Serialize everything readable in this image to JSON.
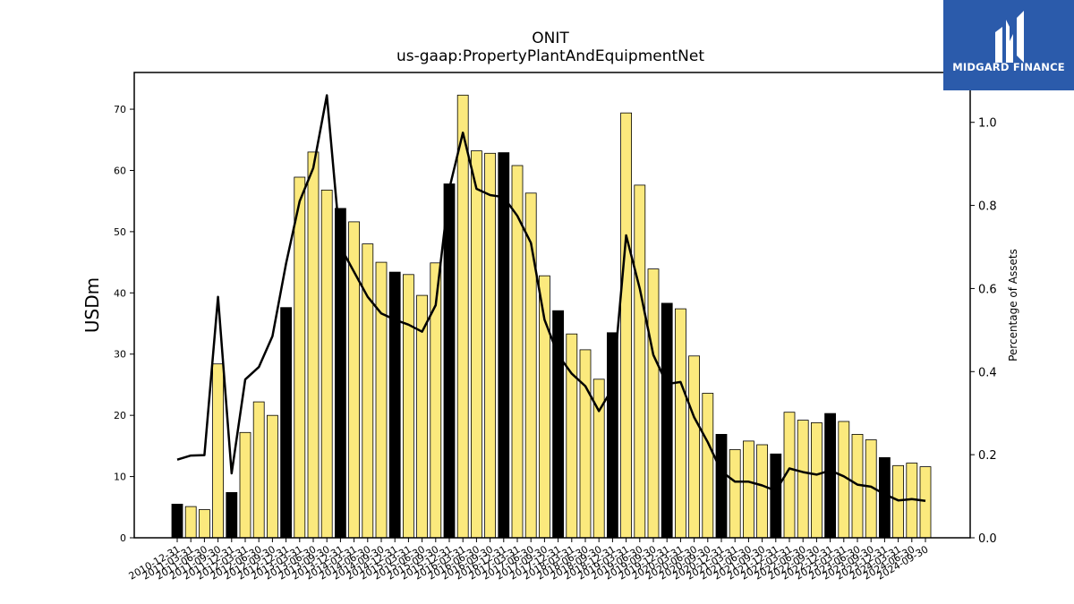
{
  "title": "ONIT",
  "subtitle": "us-gaap:PropertyPlantAndEquipmentNet",
  "logo": {
    "text": "MIDGARD FINANCE",
    "bg_color": "#2b5bab"
  },
  "chart_data": {
    "type": "bar",
    "ylabel_left": "USDm",
    "ylabel_right": "Percentage of Assets",
    "ylim_left": [
      0,
      76
    ],
    "ylim_right": [
      0,
      1.12
    ],
    "yticks_left": [
      0,
      10,
      20,
      30,
      40,
      50,
      60,
      70
    ],
    "yticks_right": [
      "0.0",
      "0.2",
      "0.4",
      "0.6",
      "0.8",
      "1.0"
    ],
    "grid": false,
    "bar_colors": {
      "annual": "#000000",
      "quarter": "#fbe97d"
    },
    "line_color": "#000000",
    "categories": [
      "2010-12-31",
      "2011-03-31",
      "2011-06-30",
      "2011-09-30",
      "2011-12-31",
      "2012-03-31",
      "2012-06-30",
      "2012-09-30",
      "2012-12-31",
      "2013-03-31",
      "2013-06-30",
      "2013-09-30",
      "2013-12-31",
      "2014-03-31",
      "2014-06-30",
      "2014-09-30",
      "2014-12-31",
      "2015-03-31",
      "2015-06-30",
      "2015-09-30",
      "2015-12-31",
      "2016-03-31",
      "2016-06-30",
      "2016-09-30",
      "2016-12-31",
      "2017-03-31",
      "2017-06-30",
      "2017-09-30",
      "2017-12-31",
      "2018-03-31",
      "2018-06-30",
      "2018-09-30",
      "2018-12-31",
      "2019-03-31",
      "2019-06-30",
      "2019-09-30",
      "2019-12-31",
      "2020-03-31",
      "2020-06-30",
      "2020-09-30",
      "2020-12-31",
      "2021-03-31",
      "2021-06-30",
      "2021-09-30",
      "2021-12-31",
      "2022-03-31",
      "2022-06-30",
      "2022-09-30",
      "2022-12-31",
      "2023-03-31",
      "2023-06-30",
      "2023-09-30",
      "2023-12-31",
      "2024-03-31",
      "2024-06-30",
      "2024-09-30"
    ],
    "series": [
      {
        "type": "bar",
        "values": [
          5.5,
          5.1,
          4.6,
          28.4,
          7.4,
          17.2,
          22.2,
          20.0,
          37.6,
          58.9,
          63.0,
          56.8,
          53.8,
          51.6,
          48.0,
          45.0,
          43.4,
          43.0,
          39.6,
          44.9,
          57.8,
          72.3,
          63.2,
          62.8,
          62.9,
          60.8,
          56.3,
          42.8,
          37.1,
          33.3,
          30.7,
          25.9,
          33.5,
          69.4,
          57.6,
          43.9,
          38.3,
          37.4,
          29.7,
          23.6,
          16.9,
          14.4,
          15.8,
          15.2,
          13.7,
          20.5,
          19.2,
          18.8,
          20.3,
          19.0,
          16.9,
          16.0,
          13.1,
          11.8,
          12.2,
          11.6
        ],
        "annual": [
          true,
          false,
          false,
          false,
          true,
          false,
          false,
          false,
          true,
          false,
          false,
          false,
          true,
          false,
          false,
          false,
          true,
          false,
          false,
          false,
          true,
          false,
          false,
          false,
          true,
          false,
          false,
          false,
          true,
          false,
          false,
          false,
          true,
          false,
          false,
          false,
          true,
          false,
          false,
          false,
          true,
          false,
          false,
          false,
          true,
          false,
          false,
          false,
          true,
          false,
          false,
          false,
          true,
          false,
          false,
          false
        ]
      },
      {
        "type": "line",
        "axis": "right",
        "values": [
          0.188,
          0.198,
          0.199,
          0.58,
          0.155,
          0.381,
          0.411,
          0.485,
          0.66,
          0.81,
          0.89,
          1.065,
          0.7,
          0.64,
          0.58,
          0.54,
          0.525,
          0.513,
          0.496,
          0.56,
          0.84,
          0.975,
          0.84,
          0.825,
          0.82,
          0.775,
          0.71,
          0.525,
          0.44,
          0.395,
          0.365,
          0.305,
          0.36,
          0.728,
          0.6,
          0.44,
          0.37,
          0.375,
          0.29,
          0.23,
          0.16,
          0.135,
          0.135,
          0.126,
          0.113,
          0.167,
          0.158,
          0.152,
          0.162,
          0.148,
          0.128,
          0.123,
          0.105,
          0.09,
          0.093,
          0.089
        ]
      }
    ]
  }
}
